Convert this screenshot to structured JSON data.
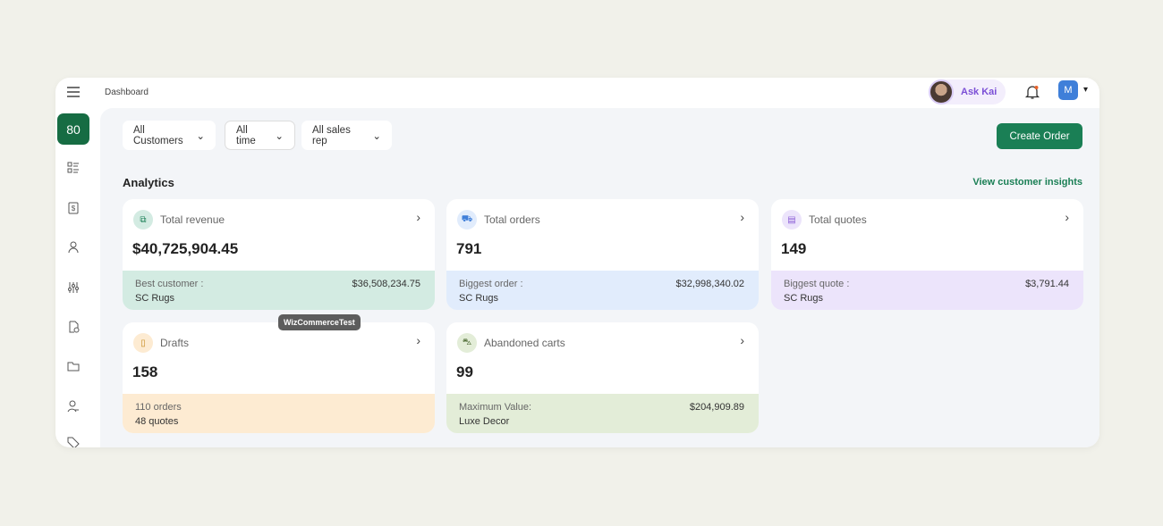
{
  "header": {
    "breadcrumb": "Dashboard",
    "ask_kai": "Ask Kai",
    "user_initial": "M"
  },
  "filters": [
    {
      "label": "All Customers"
    },
    {
      "label": "All time"
    },
    {
      "label": "All sales rep"
    }
  ],
  "create_order": "Create Order",
  "analytics": {
    "title": "Analytics",
    "insights_link": "View customer insights"
  },
  "sidebar": {
    "active_label": "80"
  },
  "tooltip": "WizCommerceTest",
  "cards": [
    {
      "title": "Total revenue",
      "value": "$40,725,904.45",
      "footer_label": "Best customer :",
      "footer_name": "SC Rugs",
      "footer_value": "$36,508,234.75",
      "color": "#d3ebe2",
      "icon": "revenue-icon"
    },
    {
      "title": "Total orders",
      "value": "791",
      "footer_label": "Biggest order :",
      "footer_name": "SC Rugs",
      "footer_value": "$32,998,340.02",
      "color": "#e1ecfc",
      "icon": "truck-icon"
    },
    {
      "title": "Total quotes",
      "value": "149",
      "footer_label": "Biggest quote :",
      "footer_name": "SC Rugs",
      "footer_value": "$3,791.44",
      "color": "#ece4fb",
      "icon": "quote-icon"
    },
    {
      "title": "Drafts",
      "value": "158",
      "footer_label": "110 orders",
      "footer_name": "48 quotes",
      "footer_value": "",
      "color": "#fdebd2",
      "icon": "document-icon"
    },
    {
      "title": "Abandoned carts",
      "value": "99",
      "footer_label": "Maximum Value:",
      "footer_name": "Luxe Decor",
      "footer_value": "$204,909.89",
      "color": "#e3edd8",
      "icon": "cart-icon"
    }
  ]
}
